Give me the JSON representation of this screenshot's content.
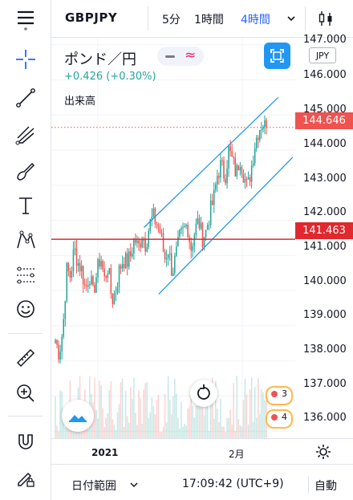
{
  "toolbar": {
    "tools": [
      {
        "name": "menu-icon"
      },
      {
        "name": "crosshair-icon"
      },
      {
        "name": "trend-line-icon"
      },
      {
        "name": "pitchfork-icon"
      },
      {
        "name": "brush-icon"
      },
      {
        "name": "text-tool-icon"
      },
      {
        "name": "pattern-icon"
      },
      {
        "name": "prediction-icon"
      },
      {
        "name": "emoji-icon"
      },
      {
        "name": "ruler-icon"
      },
      {
        "name": "zoom-in-icon"
      },
      {
        "name": "magnet-icon"
      },
      {
        "name": "lock-drawing-icon"
      }
    ]
  },
  "header": {
    "symbol": "GBPJPY",
    "intervals": [
      "5分",
      "1時間",
      "4時間"
    ],
    "active_interval": "4時間"
  },
  "legend": {
    "title": "ポンド／円",
    "change": "+0.426 (+0.30%)",
    "volume_label": "出来高"
  },
  "price_axis": {
    "currency": "JPY",
    "labels": [
      "147.000",
      "146.000",
      "145.000",
      "144.000",
      "143.000",
      "142.000",
      "141.000",
      "140.000",
      "139.000",
      "138.000",
      "137.000",
      "136.000"
    ],
    "current_price": "144.646",
    "line_price": "141.463"
  },
  "time_axis": {
    "labels": [
      "2021",
      "2月"
    ]
  },
  "events": [
    "3",
    "4"
  ],
  "bottom": {
    "date_range": "日付範囲",
    "time": "17:09:42 (UTC+9)",
    "auto": "自動"
  },
  "colors": {
    "up": "#26a69a",
    "down": "#ef5350",
    "accent": "#2962ff",
    "channel": "#2196f3",
    "hline": "#e0282e"
  },
  "chart_data": {
    "type": "candlestick",
    "symbol": "GBPJPY",
    "interval": "4時間",
    "ylim": [
      135.8,
      147.2
    ],
    "x_tick_labels": [
      "2021",
      "2月"
    ],
    "close_path": [
      138.6,
      138.2,
      138.9,
      140.6,
      140.4,
      141.2,
      140.8,
      140.6,
      140.0,
      140.5,
      139.9,
      140.5,
      141.0,
      140.3,
      140.7,
      139.7,
      140.0,
      140.6,
      140.9,
      140.8,
      141.0,
      141.5,
      141.2,
      141.6,
      141.3,
      141.9,
      142.1,
      141.9,
      141.6,
      140.9,
      141.2,
      140.5,
      141.0,
      141.5,
      141.7,
      141.9,
      141.2,
      141.7,
      142.0,
      141.5,
      141.7,
      142.2,
      142.6,
      143.3,
      143.6,
      143.2,
      144.0,
      143.7,
      143.3,
      143.8,
      143.3,
      142.9,
      143.5,
      144.2,
      144.6,
      144.8,
      144.6
    ],
    "horizontal_line": 141.463,
    "last_price": 144.646,
    "channel": {
      "upper": [
        [
          0.38,
          141.8
        ],
        [
          0.93,
          145.5
        ]
      ],
      "lower": [
        [
          0.44,
          139.9
        ],
        [
          0.99,
          143.8
        ]
      ]
    }
  }
}
